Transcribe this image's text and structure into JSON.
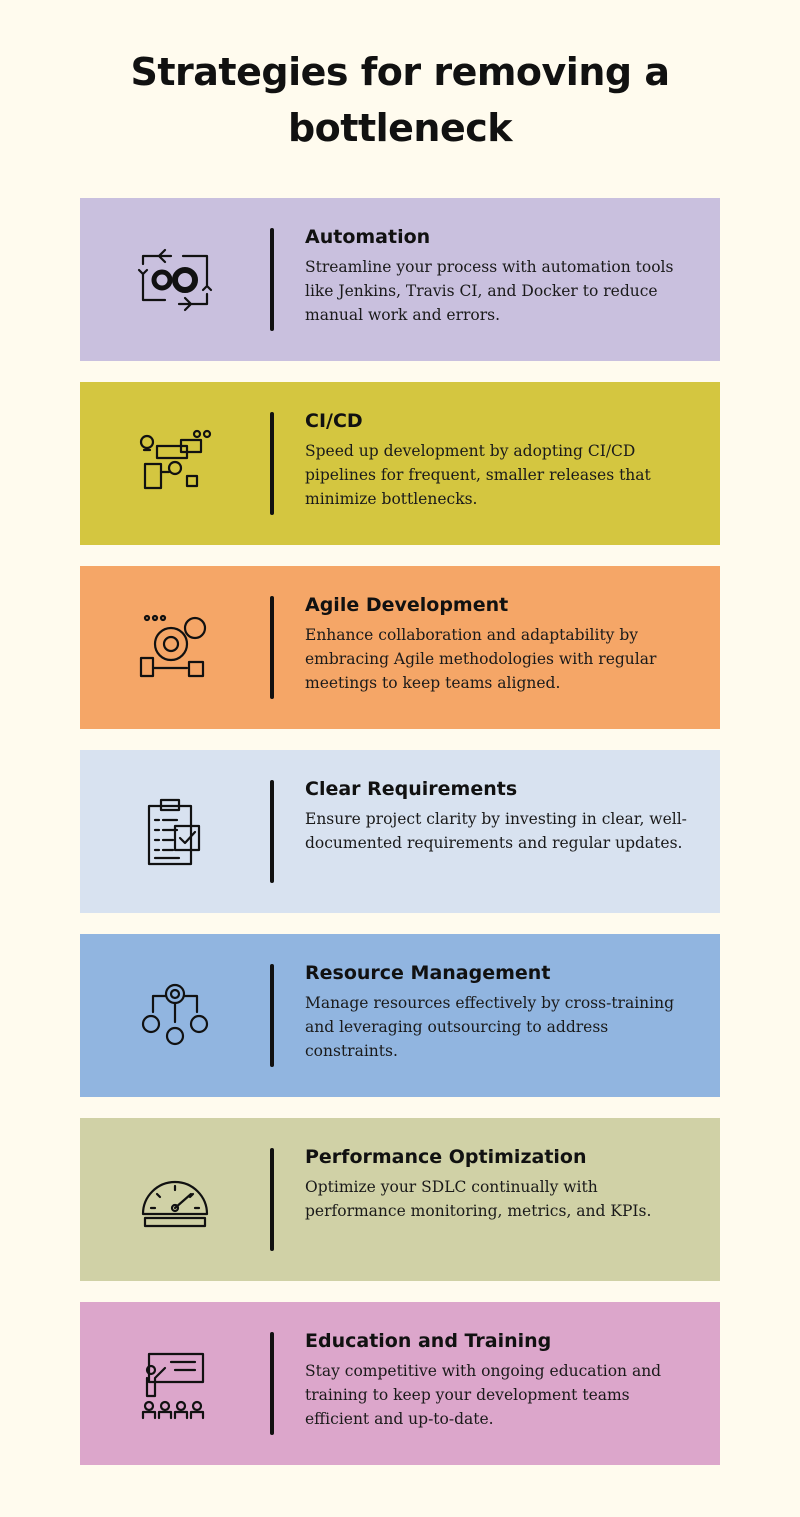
{
  "title": "Strategies for removing a bottleneck",
  "colors": {
    "background": "#fffbee",
    "divider": "#111111"
  },
  "strategies": [
    {
      "heading": "Automation",
      "body": "Streamline your process with automation tools like Jenkins, Travis CI, and Docker to reduce manual work and errors.",
      "color": "#c9c0de",
      "icon": "gears-cycle-icon"
    },
    {
      "heading": "CI/CD",
      "body": "Speed up development by adopting CI/CD pipelines for frequent, smaller releases that minimize bottlenecks.",
      "color": "#d4c640",
      "icon": "pipeline-icon"
    },
    {
      "heading": "Agile Development",
      "body": "Enhance collaboration and adaptability by embracing Agile methodologies with regular meetings to keep teams aligned.",
      "color": "#f5a667",
      "icon": "agile-gear-icon"
    },
    {
      "heading": "Clear Requirements",
      "body": "Ensure project clarity by investing in clear, well-documented requirements and regular updates.",
      "color": "#d8e2f0",
      "icon": "clipboard-check-icon"
    },
    {
      "heading": "Resource Management",
      "body": "Manage resources effectively by cross-training and leveraging outsourcing to address constraints.",
      "color": "#91b5e0",
      "icon": "gear-people-icon"
    },
    {
      "heading": "Performance Optimization",
      "body": "Optimize your SDLC continually with performance monitoring, metrics, and KPIs.",
      "color": "#d0d1a6",
      "icon": "speedometer-icon"
    },
    {
      "heading": "Education and Training",
      "body": "Stay competitive with ongoing education and training to keep your development teams efficient and up-to-date.",
      "color": "#dca6cb",
      "icon": "presentation-icon"
    }
  ]
}
